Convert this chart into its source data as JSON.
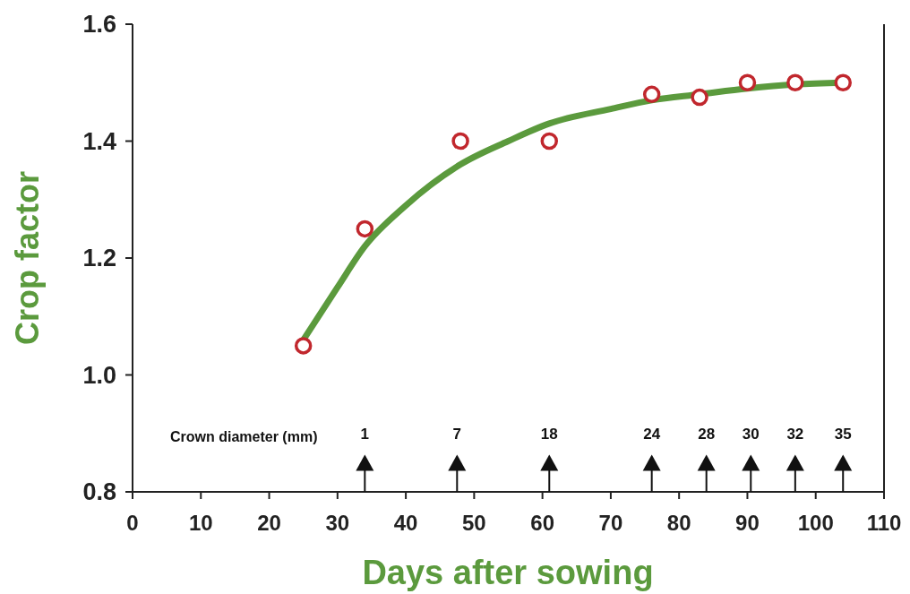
{
  "chart_data": {
    "type": "scatter",
    "xlabel": "Days after sowing",
    "ylabel": "Crop factor",
    "xlim": [
      0,
      110
    ],
    "xticks": [
      0,
      10,
      20,
      30,
      40,
      50,
      60,
      70,
      80,
      90,
      100,
      110
    ],
    "ylim": [
      0.8,
      1.6
    ],
    "yticks": [
      {
        "value": 0.8,
        "label": "0.8"
      },
      {
        "value": 1.0,
        "label": "1.0"
      },
      {
        "value": 1.2,
        "label": "1.2"
      },
      {
        "value": 1.4,
        "label": "1.4"
      },
      {
        "value": 1.6,
        "label": "1.6"
      }
    ],
    "grid": false,
    "series": [
      {
        "type": "line",
        "color": "#5b9a3d",
        "line_style": "solid",
        "x": [
          25,
          30,
          34,
          40,
          48,
          55,
          61,
          70,
          76,
          83,
          90,
          97,
          104
        ],
        "values": [
          1.06,
          1.15,
          1.22,
          1.29,
          1.36,
          1.4,
          1.43,
          1.455,
          1.47,
          1.48,
          1.49,
          1.497,
          1.5
        ]
      },
      {
        "color": "#c1272d",
        "marker": "circle",
        "x": [
          25,
          34,
          48,
          61,
          76,
          83,
          90,
          97,
          104
        ],
        "values": [
          1.05,
          1.25,
          1.4,
          1.4,
          1.48,
          1.475,
          1.5,
          1.5,
          1.5
        ]
      },
      {
        "type": "lollipop",
        "color": "#111111",
        "marker": "triangle",
        "x": [
          34,
          47.5,
          61,
          76,
          84,
          90.5,
          97,
          104
        ],
        "values": [
          0.85,
          0.85,
          0.85,
          0.85,
          0.85,
          0.85,
          0.85,
          0.85
        ]
      }
    ],
    "annotations": [
      "Crown diameter (mm)",
      {
        "text": "1",
        "x": 34,
        "y": 0.85
      },
      {
        "text": "7",
        "x": 47.5,
        "y": 0.85
      },
      {
        "text": "18",
        "x": 61,
        "y": 0.85
      },
      {
        "text": "24",
        "x": 76,
        "y": 0.85
      },
      {
        "text": "28",
        "x": 84,
        "y": 0.85
      },
      {
        "text": "30",
        "x": 90.5,
        "y": 0.85
      },
      {
        "text": "32",
        "x": 97,
        "y": 0.85
      },
      {
        "text": "35",
        "x": 104,
        "y": 0.85
      }
    ]
  }
}
